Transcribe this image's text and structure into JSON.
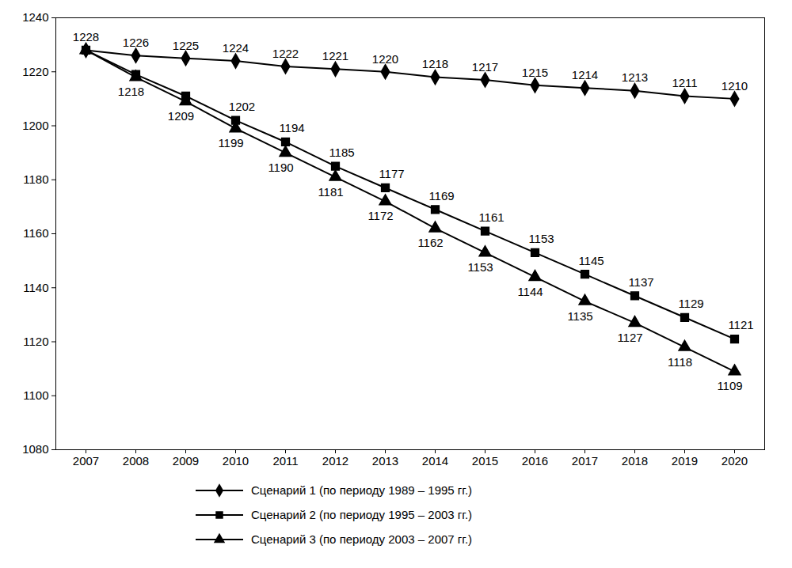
{
  "chart_data": {
    "type": "line",
    "categories": [
      "2007",
      "2008",
      "2009",
      "2010",
      "2011",
      "2012",
      "2013",
      "2014",
      "2015",
      "2016",
      "2017",
      "2018",
      "2019",
      "2020"
    ],
    "ylim": [
      1080,
      1240
    ],
    "yticks": [
      1080,
      1100,
      1120,
      1140,
      1160,
      1180,
      1200,
      1220,
      1240
    ],
    "grid": false,
    "data_labels": true,
    "legend": "bottom",
    "series": [
      {
        "name": "Сценарий 1 (по периоду 1989 – 1995 гг.)",
        "color": "#000000",
        "marker": "diamond",
        "line_style": "solid",
        "values": [
          1228,
          1226,
          1225,
          1224,
          1222,
          1221,
          1220,
          1218,
          1217,
          1215,
          1214,
          1213,
          1211,
          1210
        ],
        "value_labels": [
          "1228",
          "1226",
          "1225",
          "1224",
          "1222",
          "1221",
          "1220",
          "1218",
          "1217",
          "1215",
          "1214",
          "1213",
          "1211",
          "1210"
        ]
      },
      {
        "name": "Сценарий 2 (по периоду 1995 – 2003 гг.)",
        "color": "#000000",
        "marker": "square",
        "line_style": "solid",
        "values": [
          1228,
          1219,
          1211,
          1202,
          1194,
          1185,
          1177,
          1169,
          1161,
          1153,
          1145,
          1137,
          1129,
          1121
        ],
        "value_labels": [
          null,
          null,
          null,
          "1202",
          "1194",
          "1185",
          "1177",
          "1169",
          "1161",
          "1153",
          "1145",
          "1137",
          "1129",
          "1121"
        ]
      },
      {
        "name": "Сценарий 3 (по периоду 2003 – 2007 гг.)",
        "color": "#000000",
        "marker": "triangle",
        "line_style": "solid",
        "values": [
          1228,
          1218,
          1209,
          1199,
          1190,
          1181,
          1172,
          1162,
          1153,
          1144,
          1135,
          1127,
          1118,
          1109
        ],
        "value_labels": [
          null,
          "1218",
          "1209",
          "1199",
          "1190",
          "1181",
          "1172",
          "1162",
          "1153",
          "1144",
          "1135",
          "1127",
          "1118",
          "1109"
        ]
      }
    ]
  }
}
